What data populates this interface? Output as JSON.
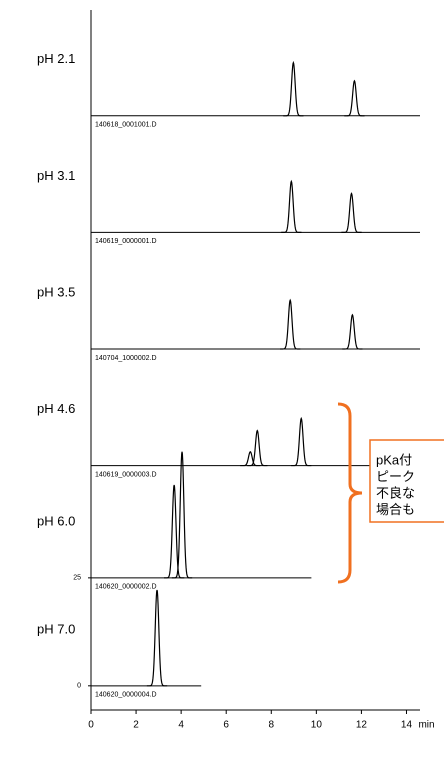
{
  "chart_data": {
    "type": "chromatogram",
    "x_unit": "min",
    "xlim": [
      0,
      14.6
    ],
    "xticks": [
      0,
      2,
      4,
      6,
      8,
      10,
      12,
      14
    ],
    "ylim": [
      -5.6,
      156.5
    ],
    "yticks": [
      0,
      25
    ],
    "color": "#000000",
    "traces": [
      {
        "label": "pH 2.1",
        "file": "140618_0001001.D",
        "offset": 132,
        "end": 14.6,
        "peaks": [
          {
            "x": 8.98,
            "height": 12.3
          },
          {
            "x": 11.69,
            "height": 8.1
          }
        ]
      },
      {
        "label": "pH 3.1",
        "file": "140619_0000001.D",
        "offset": 105,
        "end": 14.6,
        "peaks": [
          {
            "x": 8.89,
            "height": 11.8
          },
          {
            "x": 11.56,
            "height": 9.0
          }
        ]
      },
      {
        "label": "pH 3.5",
        "file": "140704_1000002.D",
        "offset": 78,
        "end": 14.6,
        "peaks": [
          {
            "x": 8.84,
            "height": 11.3
          },
          {
            "x": 11.6,
            "height": 7.9
          }
        ]
      },
      {
        "label": "pH 4.6",
        "file": "140619_0000003.D",
        "offset": 51,
        "end": 14.6,
        "peaks": [
          {
            "x": 7.07,
            "height": 3.2
          },
          {
            "x": 7.38,
            "height": 8.1
          },
          {
            "x": 9.33,
            "height": 10.9
          }
        ]
      },
      {
        "label": "pH 6.0",
        "file": "140620_0000002.D",
        "offset": 25,
        "end": 9.78,
        "peaks": [
          {
            "x": 3.69,
            "height": 21.5
          },
          {
            "x": 4.04,
            "height": 29.2
          }
        ]
      },
      {
        "label": "pH 7.0",
        "file": "140620_0000004.D",
        "offset": 0,
        "end": 4.89,
        "peaks": [
          {
            "x": 2.93,
            "height": 22.2
          }
        ]
      }
    ],
    "annotation": {
      "lines": [
        "pKa付",
        "ピーク",
        "不良な",
        "場合も"
      ],
      "color": "#f07020"
    }
  }
}
